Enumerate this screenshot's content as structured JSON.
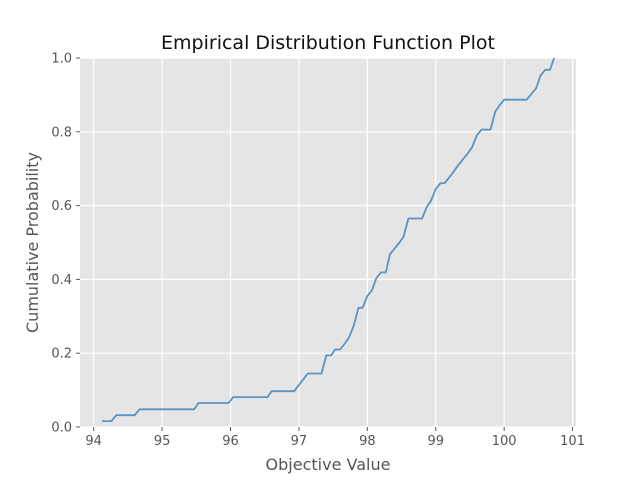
{
  "chart_data": {
    "type": "line",
    "title": "Empirical Distribution Function Plot",
    "xlabel": "Objective Value",
    "ylabel": "Cumulative Probability",
    "xlim": [
      93.8,
      101.05
    ],
    "ylim": [
      0,
      1.0
    ],
    "xticks": [
      94,
      95,
      96,
      97,
      98,
      99,
      100,
      101
    ],
    "yticks": [
      0.0,
      0.2,
      0.4,
      0.6,
      0.8,
      1.0
    ],
    "xtick_labels": [
      "94",
      "95",
      "96",
      "97",
      "98",
      "99",
      "100",
      "101"
    ],
    "ytick_labels": [
      "0.0",
      "0.2",
      "0.4",
      "0.6",
      "0.8",
      "1.0"
    ],
    "grid": true,
    "colors": {
      "background": "#e5e5e5",
      "grid": "#ffffff",
      "line": "#5b93c4",
      "text": "#555555",
      "title": "#111111"
    },
    "series": [
      {
        "x": [
          94.12,
          94.26,
          94.33,
          94.6,
          94.67,
          95.47,
          95.53,
          95.97,
          96.04,
          96.54,
          96.6,
          96.93,
          97.13,
          97.33,
          97.4,
          97.47,
          97.53,
          97.6,
          97.67,
          97.73,
          97.8,
          97.87,
          97.93,
          98.0,
          98.07,
          98.13,
          98.2,
          98.27,
          98.33,
          98.4,
          98.47,
          98.53,
          98.6,
          98.67,
          98.73,
          98.8,
          98.87,
          98.93,
          99.0,
          99.07,
          99.13,
          99.2,
          99.27,
          99.33,
          99.4,
          99.47,
          99.53,
          99.6,
          99.67,
          99.73,
          99.8,
          99.87,
          99.93,
          100.0,
          100.07,
          100.13,
          100.2,
          100.27,
          100.33,
          100.4,
          100.47,
          100.53,
          100.6,
          100.67,
          100.73
        ],
        "y": [
          0.016,
          0.016,
          0.032,
          0.032,
          0.048,
          0.048,
          0.065,
          0.065,
          0.081,
          0.081,
          0.097,
          0.097,
          0.145,
          0.145,
          0.194,
          0.194,
          0.21,
          0.21,
          0.226,
          0.242,
          0.274,
          0.323,
          0.323,
          0.355,
          0.371,
          0.403,
          0.419,
          0.419,
          0.468,
          0.484,
          0.5,
          0.516,
          0.565,
          0.565,
          0.565,
          0.565,
          0.597,
          0.613,
          0.645,
          0.661,
          0.661,
          0.677,
          0.694,
          0.71,
          0.726,
          0.742,
          0.758,
          0.79,
          0.806,
          0.806,
          0.806,
          0.855,
          0.871,
          0.887,
          0.887,
          0.887,
          0.887,
          0.887,
          0.887,
          0.903,
          0.919,
          0.952,
          0.968,
          0.968,
          1.0
        ]
      }
    ]
  }
}
